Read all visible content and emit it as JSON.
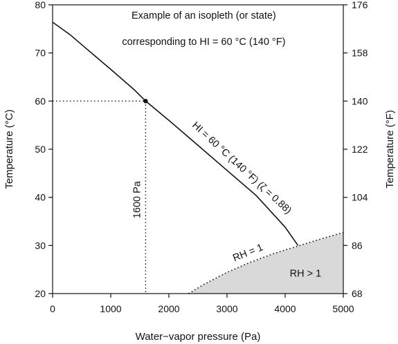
{
  "chart_data": {
    "type": "line",
    "title_lines": [
      "Example of an isopleth (or state)",
      "corresponding to HI = 60 °C  (140 °F)"
    ],
    "xlabel": "Water−vapor pressure (Pa)",
    "ylabel_left": "Temperature  (°C)",
    "ylabel_right": "Temperature  (°F)",
    "xlim": [
      0,
      5000
    ],
    "ylim": [
      20,
      80
    ],
    "x_ticks": [
      0,
      1000,
      2000,
      3000,
      4000,
      5000
    ],
    "y_ticks_left": [
      20,
      30,
      40,
      50,
      60,
      70,
      80
    ],
    "y_ticks_right": [
      68,
      86,
      104,
      122,
      140,
      158,
      176
    ],
    "grid": false,
    "colors": {
      "line": "#111111",
      "shade": "#d9d9d9"
    },
    "series": [
      {
        "kind": "solid-line",
        "label": "HI = 60 °C (140 °F)  (ζ = 0.88)",
        "x": [
          0,
          300,
          600,
          1000,
          1400,
          1600,
          2000,
          2500,
          3000,
          3500,
          4000,
          4220
        ],
        "y": [
          76.4,
          73.8,
          70.7,
          66.6,
          62.4,
          60.0,
          56.0,
          50.8,
          45.6,
          40.4,
          33.8,
          30.0
        ]
      },
      {
        "kind": "dotted-curve",
        "label": "RH = 1",
        "x": [
          2340,
          2600,
          3000,
          3400,
          3800,
          4200,
          4600,
          5000
        ],
        "y": [
          20.0,
          21.9,
          24.4,
          26.5,
          28.3,
          29.8,
          31.3,
          32.7
        ]
      }
    ],
    "region": {
      "label": "RH > 1"
    },
    "marker": {
      "x": 1600,
      "y": 60,
      "label": "1600 Pa"
    }
  }
}
